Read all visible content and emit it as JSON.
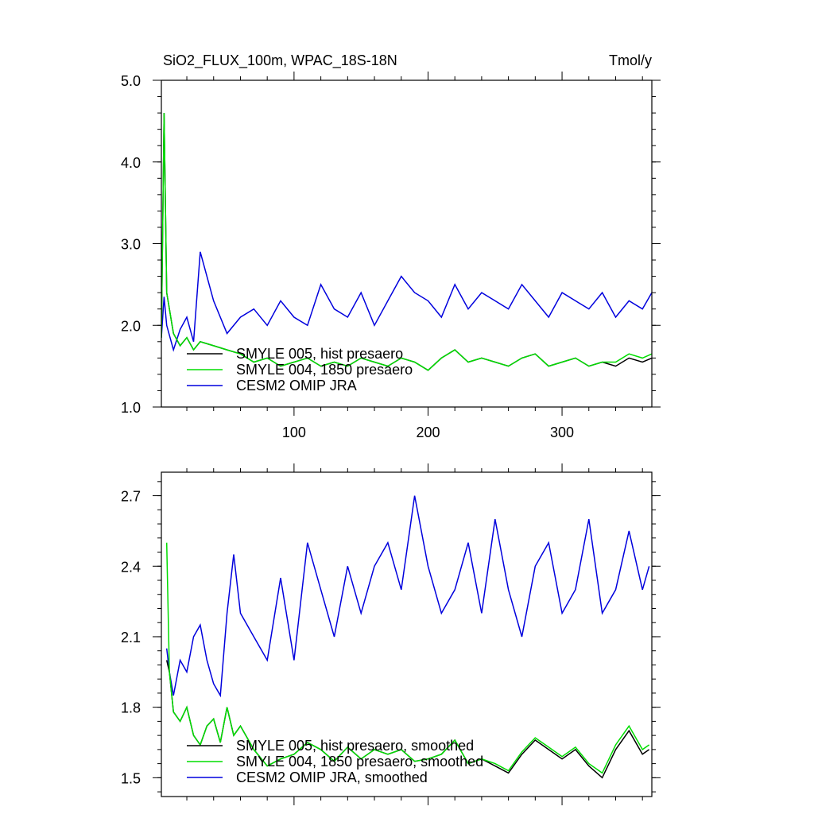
{
  "chart_data": [
    {
      "type": "line",
      "title": "SiO2_FLUX_100m, WPAC_18S-18N",
      "units": "Tmol/y",
      "xlim": [
        1,
        367
      ],
      "ylim": [
        1.0,
        5.0
      ],
      "x_ticks": [
        100,
        200,
        300
      ],
      "x_tick_labels": [
        "100",
        "200",
        "300"
      ],
      "y_ticks": [
        1.0,
        2.0,
        3.0,
        4.0,
        5.0
      ],
      "y_tick_labels": [
        "1.0",
        "2.0",
        "3.0",
        "4.0",
        "5.0"
      ],
      "legend_position": "bottom-left",
      "series": [
        {
          "name": "SMYLE 005, hist presaero",
          "color": "#000000",
          "x": [
            1,
            3,
            5,
            10,
            15,
            20,
            25,
            30,
            40,
            50,
            60,
            70,
            80,
            90,
            100,
            110,
            120,
            130,
            140,
            150,
            160,
            170,
            180,
            190,
            200,
            210,
            220,
            230,
            240,
            250,
            260,
            270,
            280,
            290,
            300,
            310,
            320,
            330,
            340,
            350,
            360,
            367
          ],
          "y": [
            1.85,
            4.6,
            2.4,
            1.9,
            1.75,
            1.85,
            1.7,
            1.8,
            1.75,
            1.7,
            1.65,
            1.55,
            1.6,
            1.5,
            1.55,
            1.6,
            1.5,
            1.55,
            1.5,
            1.6,
            1.55,
            1.5,
            1.6,
            1.55,
            1.45,
            1.6,
            1.7,
            1.55,
            1.6,
            1.55,
            1.5,
            1.6,
            1.65,
            1.5,
            1.55,
            1.6,
            1.5,
            1.55,
            1.5,
            1.6,
            1.55,
            1.6
          ]
        },
        {
          "name": "SMYLE 004, 1850 presaero",
          "color": "#00dd00",
          "x": [
            1,
            3,
            5,
            10,
            15,
            20,
            25,
            30,
            40,
            50,
            60,
            70,
            80,
            90,
            100,
            110,
            120,
            130,
            140,
            150,
            160,
            170,
            180,
            190,
            200,
            210,
            220,
            230,
            240,
            250,
            260,
            270,
            280,
            290,
            300,
            310,
            320,
            330,
            340,
            350,
            360,
            367
          ],
          "y": [
            1.85,
            4.6,
            2.4,
            1.9,
            1.75,
            1.85,
            1.7,
            1.8,
            1.75,
            1.7,
            1.65,
            1.55,
            1.6,
            1.5,
            1.55,
            1.6,
            1.5,
            1.55,
            1.5,
            1.6,
            1.55,
            1.5,
            1.6,
            1.55,
            1.45,
            1.6,
            1.7,
            1.55,
            1.6,
            1.55,
            1.5,
            1.6,
            1.65,
            1.5,
            1.55,
            1.6,
            1.5,
            1.55,
            1.55,
            1.65,
            1.6,
            1.65
          ]
        },
        {
          "name": "CESM2 OMIP JRA",
          "color": "#0000dd",
          "x": [
            1,
            3,
            5,
            10,
            15,
            20,
            25,
            30,
            40,
            50,
            60,
            70,
            80,
            90,
            100,
            110,
            120,
            130,
            140,
            150,
            160,
            170,
            180,
            190,
            200,
            210,
            220,
            230,
            240,
            250,
            260,
            270,
            280,
            290,
            300,
            310,
            320,
            330,
            340,
            350,
            360,
            367
          ],
          "y": [
            1.85,
            2.35,
            2.0,
            1.7,
            1.95,
            2.1,
            1.8,
            2.9,
            2.3,
            1.9,
            2.1,
            2.2,
            2.0,
            2.3,
            2.1,
            2.0,
            2.5,
            2.2,
            2.1,
            2.4,
            2.0,
            2.3,
            2.6,
            2.4,
            2.3,
            2.1,
            2.5,
            2.2,
            2.4,
            2.3,
            2.2,
            2.5,
            2.3,
            2.1,
            2.4,
            2.3,
            2.2,
            2.4,
            2.1,
            2.3,
            2.2,
            2.4
          ]
        }
      ]
    },
    {
      "type": "line",
      "xlim": [
        1,
        367
      ],
      "ylim": [
        1.42,
        2.8
      ],
      "x_ticks": [
        100,
        200,
        300
      ],
      "y_ticks": [
        1.5,
        1.8,
        2.1,
        2.4,
        2.7
      ],
      "y_tick_labels": [
        "1.5",
        "1.8",
        "2.1",
        "2.4",
        "2.7"
      ],
      "legend_position": "bottom-left",
      "series": [
        {
          "name": "SMYLE 005, hist presaero, smoothed",
          "color": "#000000",
          "x": [
            5,
            7,
            10,
            15,
            20,
            25,
            30,
            35,
            40,
            45,
            50,
            55,
            60,
            70,
            80,
            90,
            100,
            110,
            120,
            130,
            140,
            150,
            160,
            170,
            180,
            190,
            200,
            210,
            220,
            230,
            240,
            250,
            260,
            270,
            280,
            290,
            300,
            310,
            320,
            330,
            340,
            350,
            360,
            365
          ],
          "y": [
            2.0,
            1.95,
            1.78,
            1.74,
            1.8,
            1.68,
            1.64,
            1.72,
            1.75,
            1.65,
            1.8,
            1.68,
            1.72,
            1.62,
            1.55,
            1.58,
            1.6,
            1.65,
            1.62,
            1.57,
            1.63,
            1.58,
            1.62,
            1.6,
            1.62,
            1.57,
            1.58,
            1.6,
            1.66,
            1.56,
            1.58,
            1.55,
            1.52,
            1.6,
            1.66,
            1.62,
            1.58,
            1.62,
            1.55,
            1.5,
            1.62,
            1.7,
            1.6,
            1.62
          ]
        },
        {
          "name": "SMYLE 004, 1850 presaero, smoothed",
          "color": "#00dd00",
          "x": [
            5,
            7,
            10,
            15,
            20,
            25,
            30,
            35,
            40,
            45,
            50,
            55,
            60,
            70,
            80,
            90,
            100,
            110,
            120,
            130,
            140,
            150,
            160,
            170,
            180,
            190,
            200,
            210,
            220,
            230,
            240,
            250,
            260,
            270,
            280,
            290,
            300,
            310,
            320,
            330,
            340,
            350,
            360,
            365
          ],
          "y": [
            2.5,
            1.95,
            1.78,
            1.74,
            1.8,
            1.68,
            1.64,
            1.72,
            1.75,
            1.65,
            1.8,
            1.68,
            1.72,
            1.62,
            1.55,
            1.58,
            1.6,
            1.65,
            1.62,
            1.57,
            1.63,
            1.58,
            1.62,
            1.6,
            1.62,
            1.57,
            1.58,
            1.6,
            1.66,
            1.56,
            1.58,
            1.56,
            1.53,
            1.61,
            1.67,
            1.63,
            1.59,
            1.63,
            1.56,
            1.52,
            1.64,
            1.72,
            1.62,
            1.64
          ]
        },
        {
          "name": "CESM2 OMIP JRA, smoothed",
          "color": "#0000dd",
          "x": [
            5,
            7,
            10,
            15,
            20,
            25,
            30,
            35,
            40,
            45,
            50,
            55,
            60,
            70,
            80,
            90,
            100,
            110,
            120,
            130,
            140,
            150,
            160,
            170,
            180,
            190,
            200,
            210,
            220,
            230,
            240,
            250,
            260,
            270,
            280,
            290,
            300,
            310,
            320,
            330,
            340,
            350,
            360,
            365
          ],
          "y": [
            2.05,
            1.95,
            1.85,
            2.0,
            1.95,
            2.1,
            2.15,
            2.0,
            1.9,
            1.85,
            2.2,
            2.45,
            2.2,
            2.1,
            2.0,
            2.35,
            2.0,
            2.5,
            2.3,
            2.1,
            2.4,
            2.2,
            2.4,
            2.5,
            2.3,
            2.7,
            2.4,
            2.2,
            2.3,
            2.5,
            2.2,
            2.6,
            2.3,
            2.1,
            2.4,
            2.5,
            2.2,
            2.3,
            2.6,
            2.2,
            2.3,
            2.55,
            2.3,
            2.4
          ]
        }
      ]
    }
  ]
}
